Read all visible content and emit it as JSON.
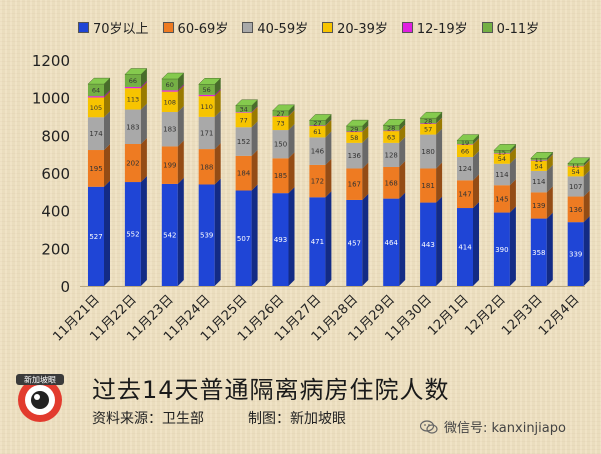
{
  "chart_data": {
    "type": "bar",
    "stacked": true,
    "categories": [
      "11月21日",
      "11月22日",
      "11月23日",
      "11月24日",
      "11月25日",
      "11月26日",
      "11月27日",
      "11月28日",
      "11月29日",
      "11月30日",
      "12月1日",
      "12月2日",
      "12月3日",
      "12月4日"
    ],
    "series": [
      {
        "name": "70岁以上",
        "color": "#1f45d6",
        "values": [
          527,
          552,
          542,
          539,
          507,
          493,
          471,
          457,
          464,
          443,
          414,
          390,
          358,
          339
        ]
      },
      {
        "name": "60-69岁",
        "color": "#ee7b22",
        "values": [
          195,
          202,
          199,
          188,
          184,
          185,
          172,
          167,
          168,
          181,
          147,
          145,
          139,
          136
        ]
      },
      {
        "name": "40-59岁",
        "color": "#a9a9a9",
        "values": [
          174,
          183,
          183,
          171,
          152,
          150,
          146,
          136,
          128,
          180,
          124,
          114,
          114,
          107
        ]
      },
      {
        "name": "20-39岁",
        "color": "#f7c400",
        "values": [
          105,
          113,
          108,
          110,
          77,
          73,
          61,
          58,
          63,
          57,
          66,
          54,
          54,
          54
        ]
      },
      {
        "name": "12-19岁",
        "color": "#e020e0",
        "values": [
          7,
          7,
          7,
          7,
          3,
          2,
          2,
          2,
          2,
          2,
          2,
          2,
          2,
          2
        ]
      },
      {
        "name": "0-11岁",
        "color": "#74b044",
        "values": [
          64,
          66,
          60,
          56,
          34,
          27,
          27,
          29,
          28,
          28,
          19,
          15,
          11,
          11
        ]
      }
    ],
    "data_labels": [
      [
        "527",
        "552",
        "542",
        "539",
        "507",
        "493",
        "471",
        "457",
        "464",
        "443",
        "414",
        "390",
        "358",
        "339"
      ],
      [
        "195",
        "202",
        "199",
        "188",
        "184",
        "185",
        "172",
        "167",
        "168",
        "181",
        "147",
        "145",
        "139",
        "136"
      ],
      [
        "174",
        "183",
        "183",
        "171",
        "152",
        "150",
        "146",
        "136",
        "128",
        "180",
        "124",
        "114",
        "114",
        "107"
      ],
      [
        "105",
        "113",
        "108",
        "110",
        "77",
        "73",
        "61",
        "58",
        "63",
        "57",
        "66",
        "54",
        "54",
        "54"
      ],
      [
        "",
        "",
        "",
        "",
        "",
        "",
        "",
        "",
        "",
        "",
        "",
        "",
        "",
        ""
      ],
      [
        "64",
        "66",
        "60",
        "56",
        "34",
        "27",
        "27",
        "29",
        "28",
        "28",
        "19",
        "15",
        "11",
        "11"
      ]
    ],
    "ylim": [
      0,
      1200
    ],
    "yticks": [
      "0",
      "200",
      "400",
      "600",
      "800",
      "1000",
      "1200"
    ],
    "grid": false,
    "legend": "top"
  },
  "title": "过去14天普通隔离病房住院人数",
  "source": "资料来源：卫生部",
  "maker": "制图：新加坡眼",
  "badge_text": "新加坡眼",
  "wechat": "微信号: kanxinjiapo"
}
